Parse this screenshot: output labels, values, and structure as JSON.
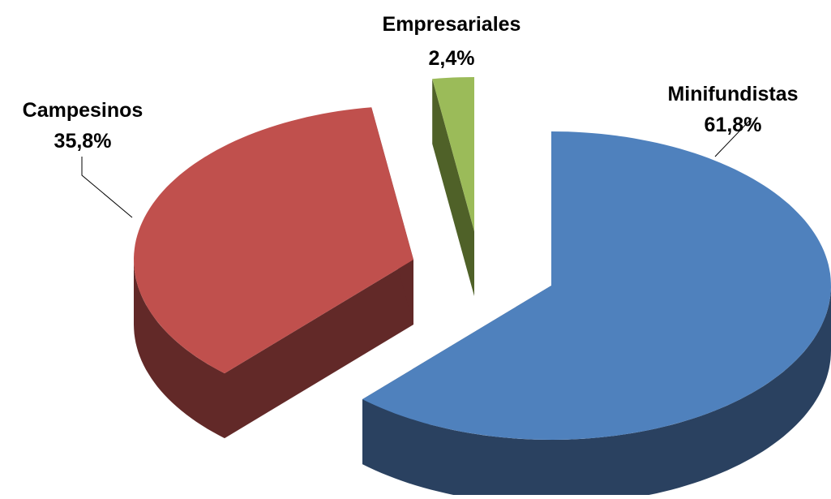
{
  "chart_data": {
    "type": "pie",
    "style": "3d-exploded",
    "title": "",
    "legend": "none",
    "slices": [
      {
        "label": "Minifundistas",
        "value": 61.8,
        "display": "61,8%",
        "color": "#4f81bd",
        "side_color": "#2a4160"
      },
      {
        "label": "Campesinos",
        "value": 35.8,
        "display": "35,8%",
        "color": "#c0504d",
        "side_color": "#622928"
      },
      {
        "label": "Empresariales",
        "value": 2.4,
        "display": "2,4%",
        "color": "#9bbb59",
        "side_color": "#4f6128"
      }
    ]
  }
}
